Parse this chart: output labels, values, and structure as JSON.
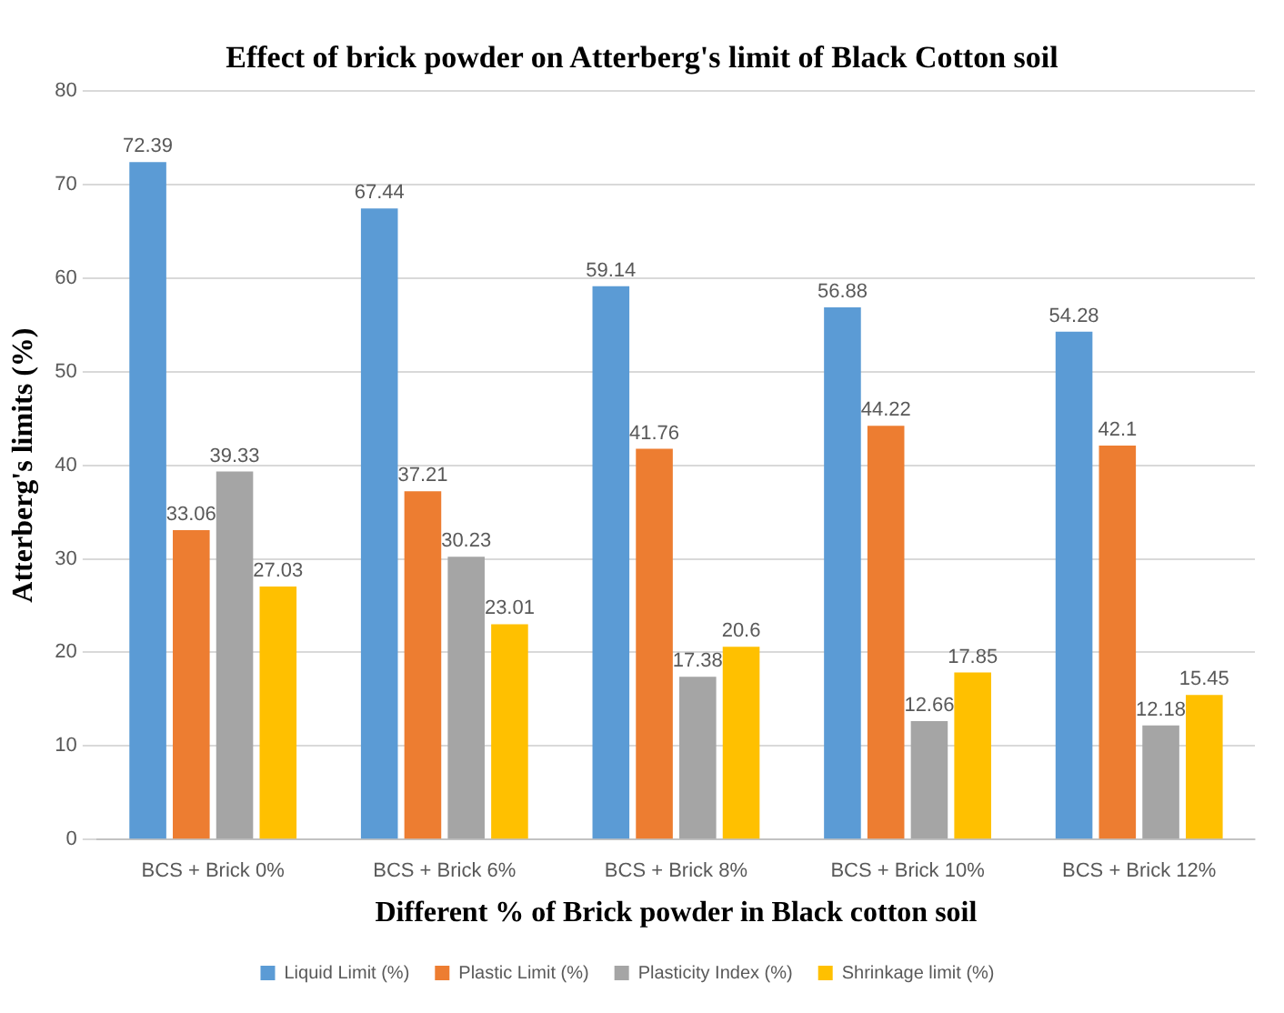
{
  "chart_data": {
    "type": "bar",
    "title": "Effect of brick powder on Atterberg's limit of Black Cotton soil",
    "xlabel": "Different % of Brick powder in Black cotton soil",
    "ylabel": "Atterberg's limits (%)",
    "categories": [
      "BCS + Brick 0%",
      "BCS + Brick 6%",
      "BCS + Brick 8%",
      "BCS + Brick 10%",
      "BCS + Brick 12%"
    ],
    "series": [
      {
        "name": "Liquid Limit (%)",
        "color": "#5b9bd5",
        "values": [
          72.39,
          67.44,
          59.14,
          56.88,
          54.28
        ]
      },
      {
        "name": "Plastic Limit (%)",
        "color": "#ed7d31",
        "values": [
          33.06,
          37.21,
          41.76,
          44.22,
          42.1
        ]
      },
      {
        "name": "Plasticity Index (%)",
        "color": "#a5a5a5",
        "values": [
          39.33,
          30.23,
          17.38,
          12.66,
          12.18
        ]
      },
      {
        "name": "Shrinkage limit (%)",
        "color": "#ffc000",
        "values": [
          27.03,
          23.01,
          20.6,
          17.85,
          15.45
        ]
      }
    ],
    "ylim": [
      0,
      80
    ],
    "yticks": [
      0,
      10,
      20,
      30,
      40,
      50,
      60,
      70,
      80
    ],
    "grid": "y",
    "legend": "bottom",
    "data_labels": true
  }
}
